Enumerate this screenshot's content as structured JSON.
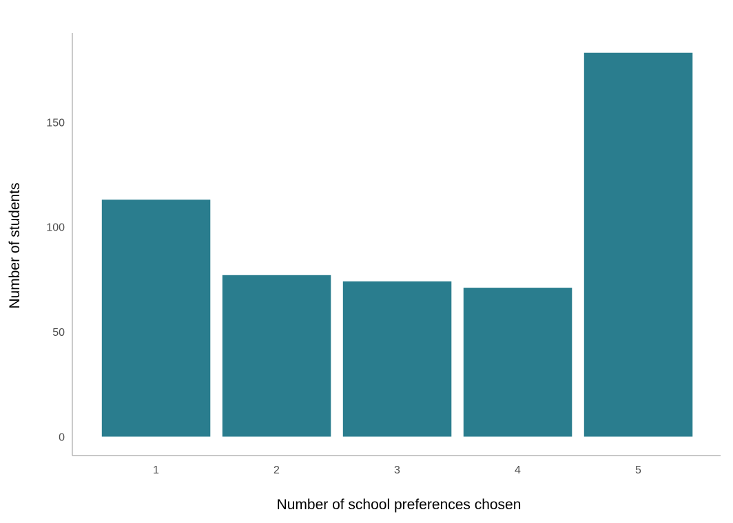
{
  "chart_data": {
    "type": "bar",
    "categories": [
      "1",
      "2",
      "3",
      "4",
      "5"
    ],
    "values": [
      113,
      77,
      74,
      71,
      183
    ],
    "title": "",
    "xlabel": "Number of school preferences chosen",
    "ylabel": "Number of students",
    "ylim": [
      0,
      192
    ],
    "yticks": [
      0,
      50,
      100,
      150
    ],
    "grid": false,
    "legend": "none",
    "colors": {
      "bar": "#2a7d8e"
    }
  }
}
